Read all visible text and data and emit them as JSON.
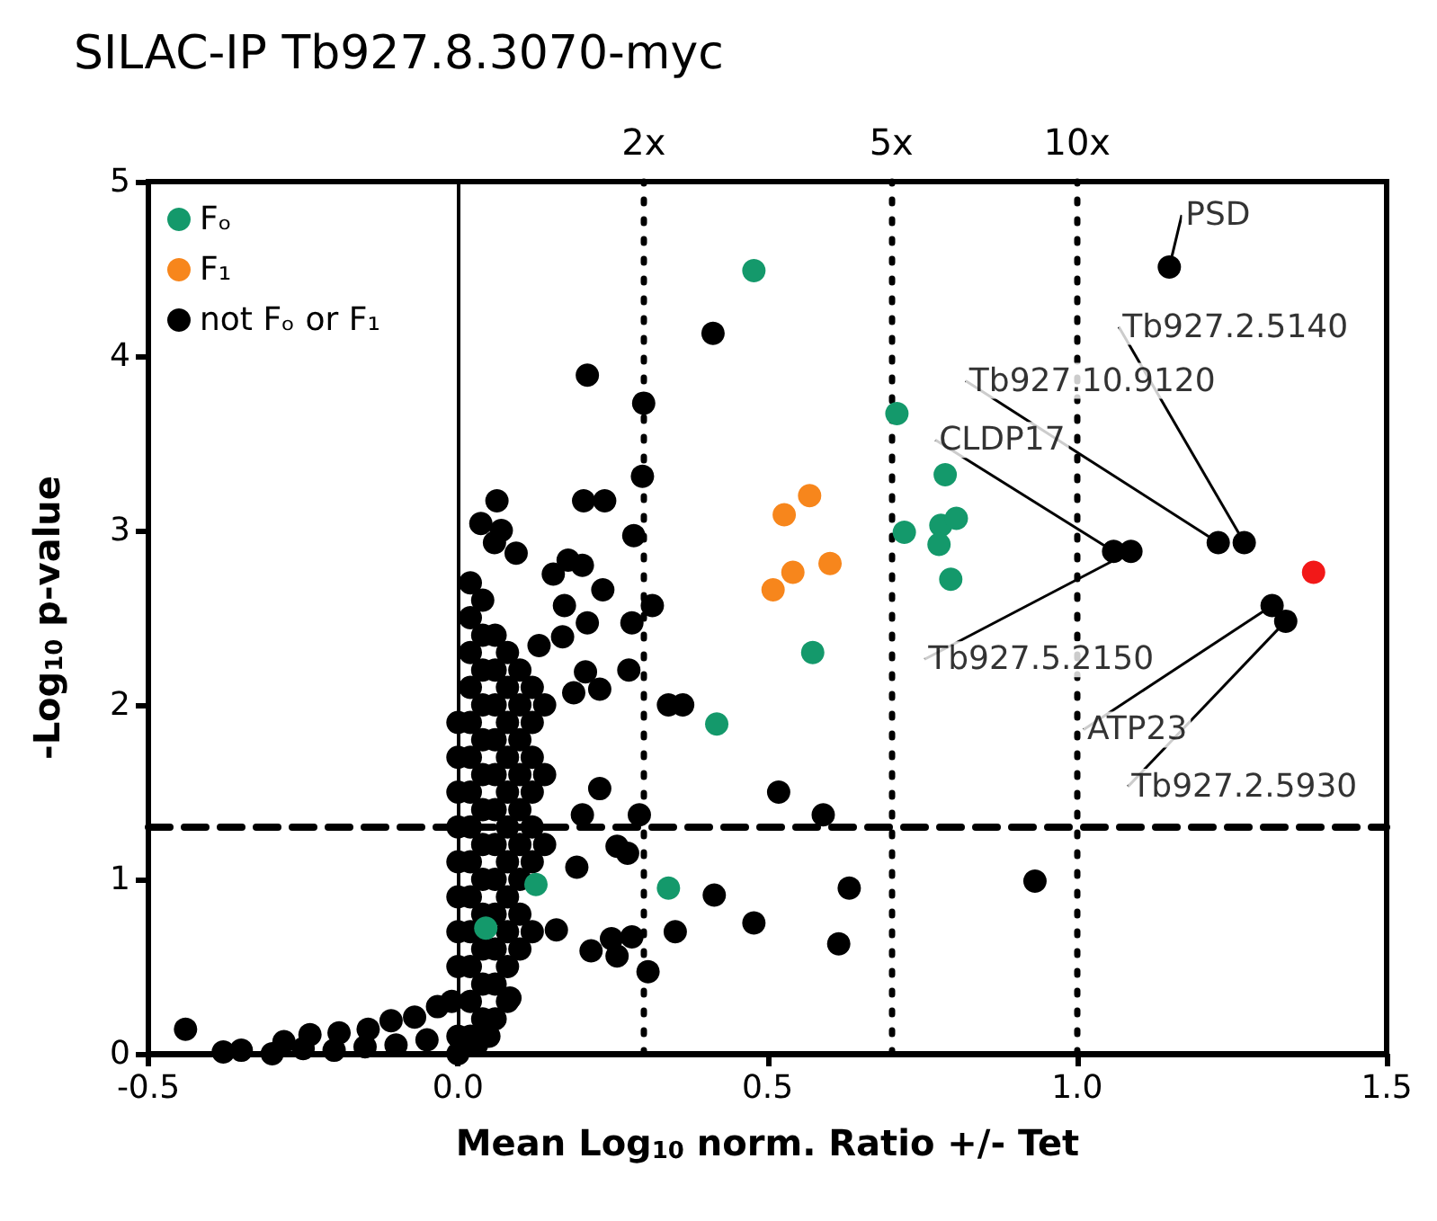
{
  "chart_data": {
    "type": "scatter",
    "title": "SILAC-IP Tb927.8.3070-myc",
    "xlabel": "Mean Log$_{10}$ norm. Ratio +/- Tet",
    "ylabel": "-Log$_{10}$ p-value",
    "xlim": [
      -0.5,
      1.5
    ],
    "xticks": [
      -0.5,
      {
        "value": 0,
        "label": "0.0"
      },
      0.5,
      {
        "value": 1,
        "label": "1.0"
      },
      1.5
    ],
    "ylim": [
      0,
      5
    ],
    "yticks": [
      0,
      1,
      2,
      3,
      4,
      5
    ],
    "grid": false,
    "legend": "top left",
    "marker": "circle",
    "series": [
      {
        "name": "Fₒ",
        "color": "#14996b",
        "x": [
          0.478,
          0.709,
          0.787,
          0.721,
          0.78,
          0.805,
          0.777,
          0.796,
          0.573,
          0.418,
          0.34,
          0.126,
          0.049,
          0.045
        ],
        "values": [
          4.49,
          3.67,
          3.32,
          2.99,
          3.03,
          3.07,
          2.92,
          2.72,
          2.3,
          1.89,
          0.95,
          0.97,
          null,
          0.72
        ]
      },
      {
        "name": "F₁",
        "color": "#f7861c",
        "x": [
          0.527,
          0.568,
          0.509,
          0.541,
          0.601
        ],
        "values": [
          3.09,
          3.2,
          2.66,
          2.76,
          2.81
        ]
      },
      {
        "name": "not Fₒ or F₁",
        "color": "#000000",
        "x": [
          1.149,
          1.27,
          1.228,
          1.059,
          1.087,
          1.315,
          1.337,
          0.412,
          0.3,
          0.298,
          0.284,
          0.314,
          0.281,
          0.276,
          0.34,
          0.363,
          0.518,
          0.293,
          0.59,
          0.274,
          0.414,
          0.632,
          0.281,
          0.351,
          0.478,
          0.615,
          0.307,
          0.932,
          0.209,
          0.063,
          0.203,
          0.237,
          0.037,
          0.07,
          0.059,
          0.094,
          0.178,
          0.154,
          0.201,
          0.234,
          0.172,
          0.209,
          0.169,
          0.131,
          0.206,
          0.187,
          0.229,
          0.229,
          0.201,
          0.257,
          0.192,
          0.159,
          0.215,
          0.248,
          0.257,
          0.084,
          -0.44,
          -0.379,
          -0.281,
          -0.239,
          -0.192,
          -0.145,
          -0.108,
          -0.07,
          -0.033,
          -0.01,
          -0.35,
          -0.3,
          -0.25,
          -0.2,
          -0.15,
          -0.1,
          -0.05,
          0.03,
          0.05,
          0,
          0,
          0,
          0,
          0,
          0,
          0,
          0,
          0,
          0,
          0.02,
          0.02,
          0.02,
          0.02,
          0.02,
          0.02,
          0.02,
          0.02,
          0.02,
          0.02,
          0.02,
          0.02,
          0.02,
          0.02,
          0.04,
          0.04,
          0.04,
          0.04,
          0.04,
          0.04,
          0.04,
          0.04,
          0.04,
          0.04,
          0.04,
          0.04,
          0.04,
          0.06,
          0.06,
          0.06,
          0.06,
          0.06,
          0.06,
          0.06,
          0.06,
          0.06,
          0.06,
          0.06,
          0.06,
          0.08,
          0.08,
          0.08,
          0.08,
          0.08,
          0.08,
          0.08,
          0.08,
          0.08,
          0.08,
          0.08,
          0.1,
          0.1,
          0.1,
          0.1,
          0.1,
          0.1,
          0.1,
          0.1,
          0.1,
          0.12,
          0.12,
          0.12,
          0.12,
          0.12,
          0.12,
          0.12,
          0.14,
          0.14,
          0.14
        ],
        "values": [
          4.51,
          2.93,
          2.93,
          2.88,
          2.88,
          2.57,
          2.48,
          4.13,
          3.73,
          3.31,
          2.97,
          2.57,
          2.47,
          2.2,
          2.0,
          2.0,
          1.5,
          1.37,
          1.37,
          1.15,
          0.91,
          0.95,
          0.67,
          0.7,
          0.75,
          0.63,
          0.47,
          0.99,
          3.89,
          3.17,
          3.17,
          3.17,
          3.04,
          3.0,
          2.93,
          2.87,
          2.83,
          2.75,
          2.8,
          2.66,
          2.57,
          2.47,
          2.39,
          2.34,
          2.19,
          2.07,
          2.09,
          1.52,
          1.37,
          1.19,
          1.07,
          0.71,
          0.59,
          0.66,
          0.56,
          0.32,
          0.14,
          0.01,
          0.07,
          0.11,
          0.12,
          0.14,
          0.19,
          0.21,
          0.27,
          0.3,
          0.02,
          0.0,
          0.03,
          0.02,
          0.04,
          0.05,
          0.08,
          0.05,
          0.1,
          0.0,
          0.1,
          0.5,
          0.7,
          0.9,
          1.1,
          1.3,
          1.5,
          1.7,
          1.9,
          0.1,
          0.3,
          0.5,
          0.7,
          0.9,
          1.1,
          1.3,
          1.5,
          1.7,
          1.9,
          2.1,
          2.3,
          2.5,
          2.7,
          0.2,
          0.4,
          0.6,
          0.8,
          1.0,
          1.2,
          1.4,
          1.6,
          1.8,
          2.0,
          2.2,
          2.4,
          2.6,
          0.2,
          0.4,
          0.6,
          0.8,
          1.0,
          1.2,
          1.4,
          1.6,
          1.8,
          2.0,
          2.2,
          2.4,
          0.3,
          0.5,
          0.7,
          0.9,
          1.1,
          1.3,
          1.5,
          1.7,
          1.9,
          2.1,
          2.3,
          0.6,
          0.8,
          1.0,
          1.2,
          1.4,
          1.6,
          1.8,
          2.0,
          2.2,
          0.7,
          1.1,
          1.3,
          1.5,
          1.7,
          1.9,
          2.1,
          1.2,
          1.6,
          2.0
        ]
      },
      {
        "color": "#f21818",
        "x": [
          1.382
        ],
        "values": [
          2.76
        ]
      }
    ],
    "ref_lines": [
      {
        "axis": "y",
        "value": 1.3,
        "line_style": "dashed"
      },
      {
        "axis": "x",
        "value": 0,
        "line_style": "solid"
      },
      {
        "axis": "x",
        "value": 0.3,
        "label": "2x",
        "line_style": "dotted"
      },
      {
        "axis": "x",
        "value": 0.7,
        "label": "5x",
        "line_style": "dotted"
      },
      {
        "axis": "x",
        "value": 1.0,
        "label": "10x",
        "line_style": "dotted"
      }
    ],
    "annotations": [
      {
        "text": "PSD",
        "x": 1.149,
        "y": 4.51
      },
      {
        "text": "Tb927.2.5140",
        "x": 1.27,
        "y": 2.93
      },
      {
        "text": "Tb927.10.9120",
        "x": 1.228,
        "y": 2.93
      },
      {
        "text": "CLDP17",
        "x": 1.059,
        "y": 2.88
      },
      {
        "text": "Tb927.5.2150",
        "x": 1.087,
        "y": 2.88
      },
      {
        "text": "ATP23",
        "x": 1.315,
        "y": 2.57
      },
      {
        "text": "Tb927.2.5930",
        "x": 1.337,
        "y": 2.48
      }
    ]
  }
}
